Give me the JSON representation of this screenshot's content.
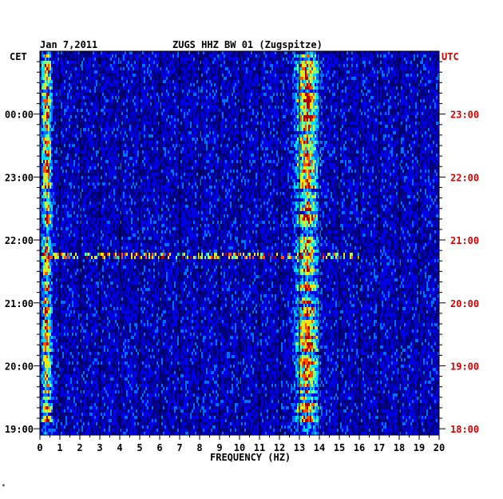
{
  "header": {
    "date": "Jan 7,2011",
    "station": "ZUGS HHZ BW 01 (Zugspitze)"
  },
  "chart_data": {
    "type": "heatmap",
    "title": "ZUGS HHZ BW 01 (Zugspitze)",
    "date": "Jan 7,2011",
    "xlabel": "FREQUENCY (HZ)",
    "xlim": [
      0,
      20
    ],
    "x_ticks": [
      "0",
      "1",
      "2",
      "3",
      "4",
      "5",
      "6",
      "7",
      "8",
      "9",
      "10",
      "11",
      "12",
      "13",
      "14",
      "15",
      "16",
      "17",
      "18",
      "19",
      "20"
    ],
    "left_axis_label": "CET",
    "right_axis_label": "UTC",
    "left_ticks": [
      "19:00",
      "20:00",
      "21:00",
      "22:00",
      "23:00",
      "00:00"
    ],
    "right_ticks": [
      "18:00",
      "19:00",
      "20:00",
      "21:00",
      "22:00",
      "23:00"
    ],
    "utc_range": [
      "17:54",
      "00:00"
    ],
    "grid": true,
    "colormap": [
      "#00007a",
      "#0000e6",
      "#006eff",
      "#00dcff",
      "#7dff7d",
      "#ffe600",
      "#ff5000",
      "#aa0000"
    ],
    "features": [
      {
        "desc_key": "low-frequency band",
        "freq_range_hz": [
          0.1,
          0.6
        ],
        "intensity": "high"
      },
      {
        "desc_key": "persistent band",
        "freq_range_hz": [
          12.8,
          14.0
        ],
        "intensity": "high"
      },
      {
        "desc_key": "broadband line",
        "utc": "20:45",
        "freq_range_hz": [
          0,
          16
        ],
        "intensity": "medium"
      }
    ]
  },
  "footer": {
    "mark": "*"
  }
}
